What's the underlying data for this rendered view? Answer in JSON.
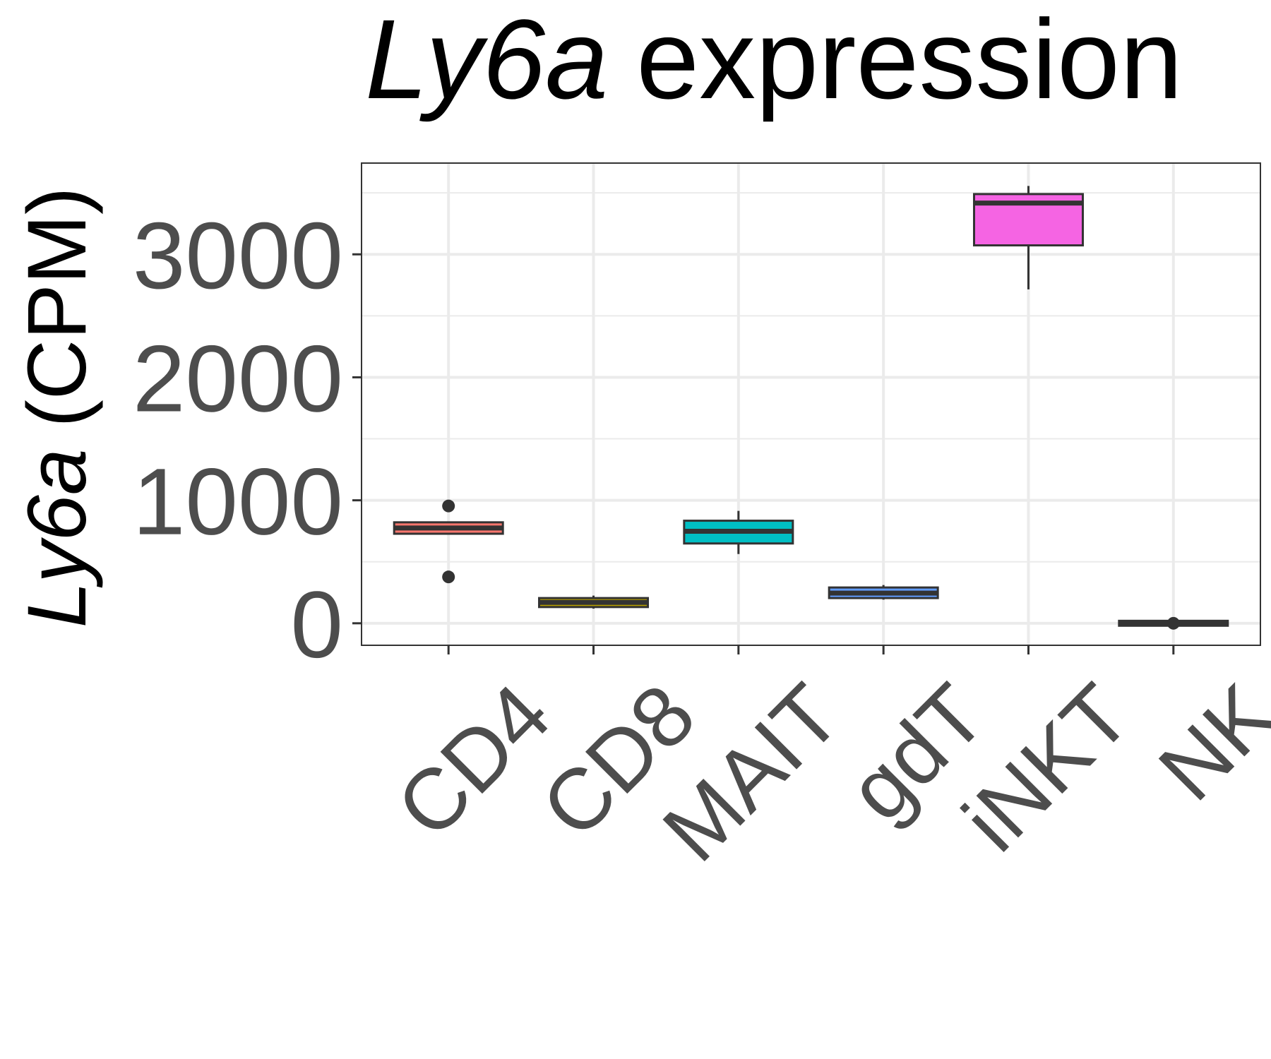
{
  "chart_data": {
    "type": "box",
    "title_gene": "Ly6a",
    "title_rest": "expression",
    "y_label_gene": "Ly6a",
    "y_label_rest": "(CPM)",
    "categories": [
      "CD4",
      "CD8",
      "MAIT",
      "gdT",
      "iNKT",
      "NK"
    ],
    "boxes": [
      {
        "whisker_low": 728,
        "q1": 728,
        "median": 775,
        "q3": 821,
        "whisker_high": 821,
        "outliers": [
          954,
          377
        ],
        "color": "#F8766D"
      },
      {
        "whisker_low": 119,
        "q1": 132,
        "median": 170,
        "q3": 205,
        "whisker_high": 225,
        "outliers": [],
        "color": "#B79F00"
      },
      {
        "whisker_low": 563,
        "q1": 649,
        "median": 748,
        "q3": 834,
        "whisker_high": 914,
        "outliers": [],
        "color": "#00BFC4"
      },
      {
        "whisker_low": 192,
        "q1": 205,
        "median": 245,
        "q3": 291,
        "whisker_high": 311,
        "outliers": [],
        "color": "#619CFF"
      },
      {
        "whisker_low": 2715,
        "q1": 3073,
        "median": 3417,
        "q3": 3490,
        "whisker_high": 3556,
        "outliers": [],
        "color": "#F564E3"
      },
      {
        "whisker_low": -20,
        "q1": -20,
        "median": 0,
        "q3": 20,
        "whisker_high": 20,
        "outliers": [
          0
        ],
        "color": "#F564E3"
      }
    ],
    "ylim": [
      -179,
      3742
    ],
    "yticks": [
      0,
      1000,
      2000,
      3000
    ],
    "minor_yticks": [
      500,
      1500,
      2500,
      3500
    ],
    "grid": true
  }
}
